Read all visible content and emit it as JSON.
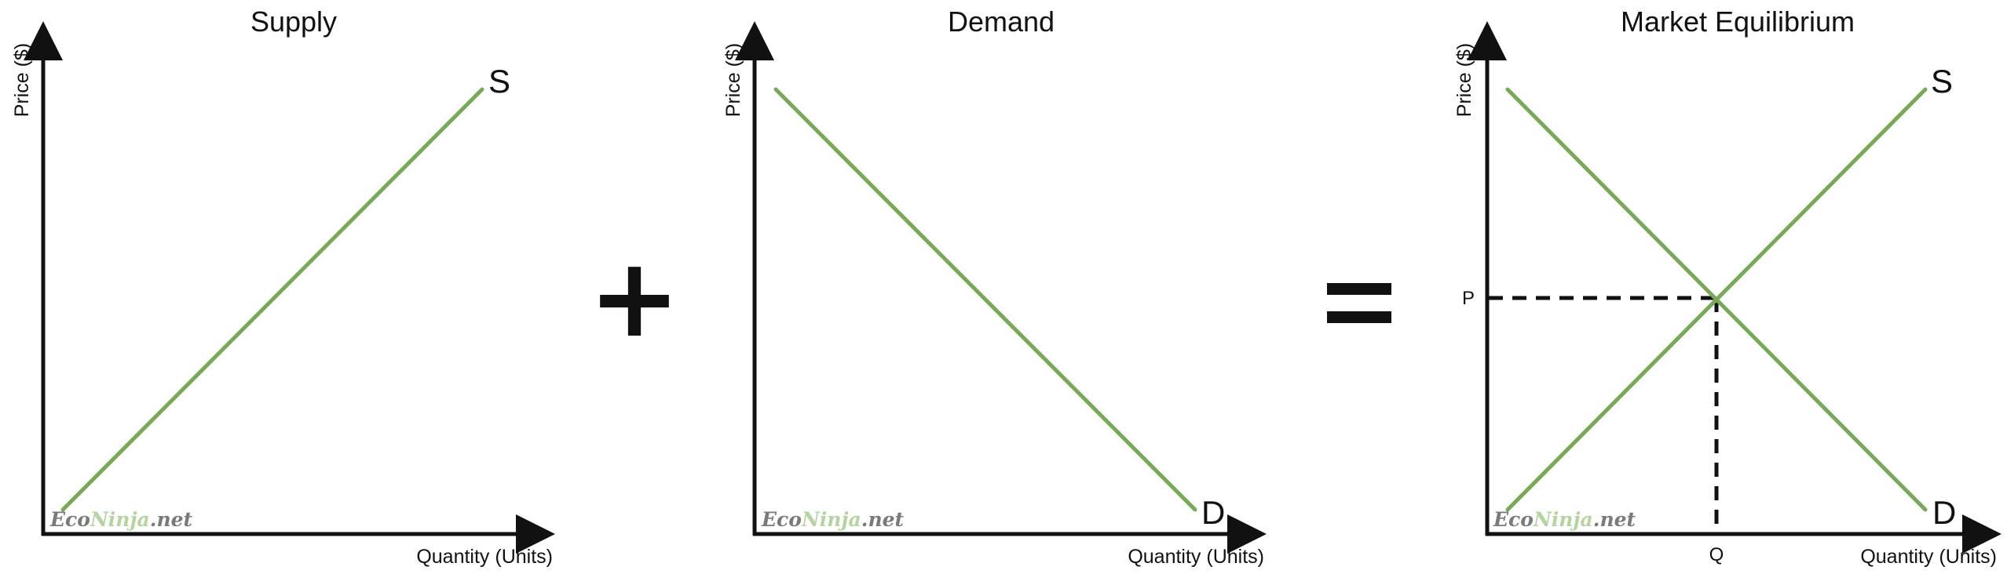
{
  "colors": {
    "curve": "#79a85a",
    "axis": "#111111",
    "watermark_dark": "#7a7a7a",
    "watermark_green": "#b7d3a3"
  },
  "operators": {
    "plus": "+",
    "equals": "="
  },
  "watermark": {
    "part1": "Eco",
    "part2": "Ninja",
    "part3": ".net"
  },
  "panels": [
    {
      "title": "Supply",
      "ylabel": "Price ($)",
      "xlabel": "Quantity (Units)",
      "curve_labels": [
        "S"
      ]
    },
    {
      "title": "Demand",
      "ylabel": "Price ($)",
      "xlabel": "Quantity (Units)",
      "curve_labels": [
        "D"
      ]
    },
    {
      "title": "Market Equilibrium",
      "ylabel": "Price ($)",
      "xlabel": "Quantity (Units)",
      "curve_labels": [
        "S",
        "D"
      ],
      "equilibrium": {
        "price_label": "P",
        "quantity_label": "Q"
      }
    }
  ]
}
